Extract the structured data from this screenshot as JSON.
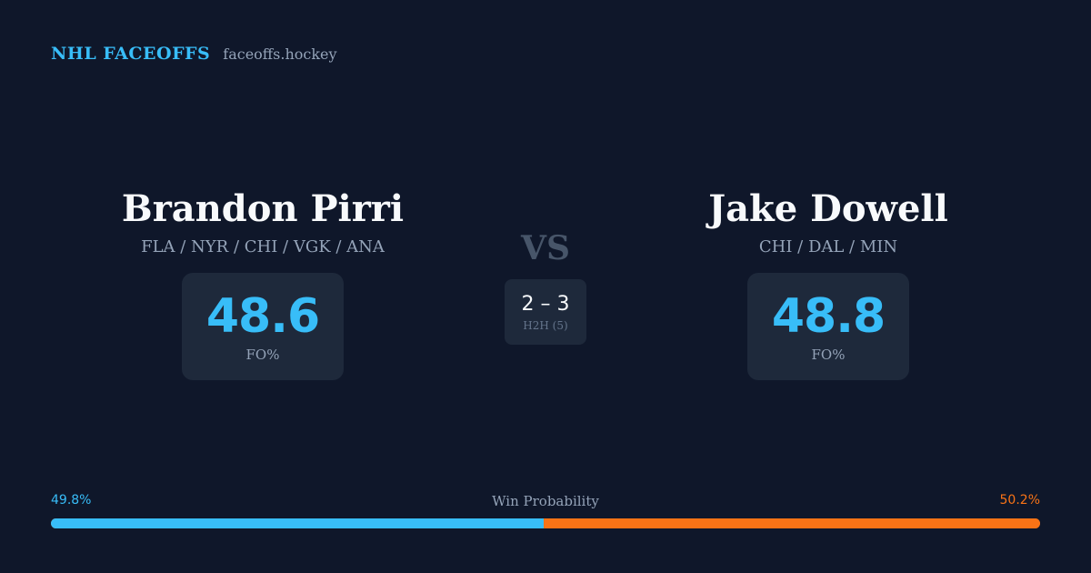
{
  "brand": {
    "name": "NHL FACEOFFS",
    "domain": "faceoffs.hockey"
  },
  "player1": {
    "name": "Brandon Pirri",
    "teams": "FLA / NYR / CHI / VGK / ANA",
    "fo_pct": "48.6",
    "fo_label": "FO%"
  },
  "player2": {
    "name": "Jake Dowell",
    "teams": "CHI / DAL / MIN",
    "fo_pct": "48.8",
    "fo_label": "FO%"
  },
  "vs_label": "VS",
  "h2h": {
    "score": "2 – 3",
    "label": "H2H (5)"
  },
  "win_probability": {
    "title": "Win Probability",
    "player1_label": "49.8%",
    "player2_label": "50.2%",
    "player1_value": 49.8,
    "player2_value": 50.2
  },
  "colors": {
    "background": "#0f172a",
    "card": "#1e293b",
    "accent_blue": "#38bdf8",
    "accent_orange": "#f97316",
    "muted_text": "#94a3b8"
  }
}
